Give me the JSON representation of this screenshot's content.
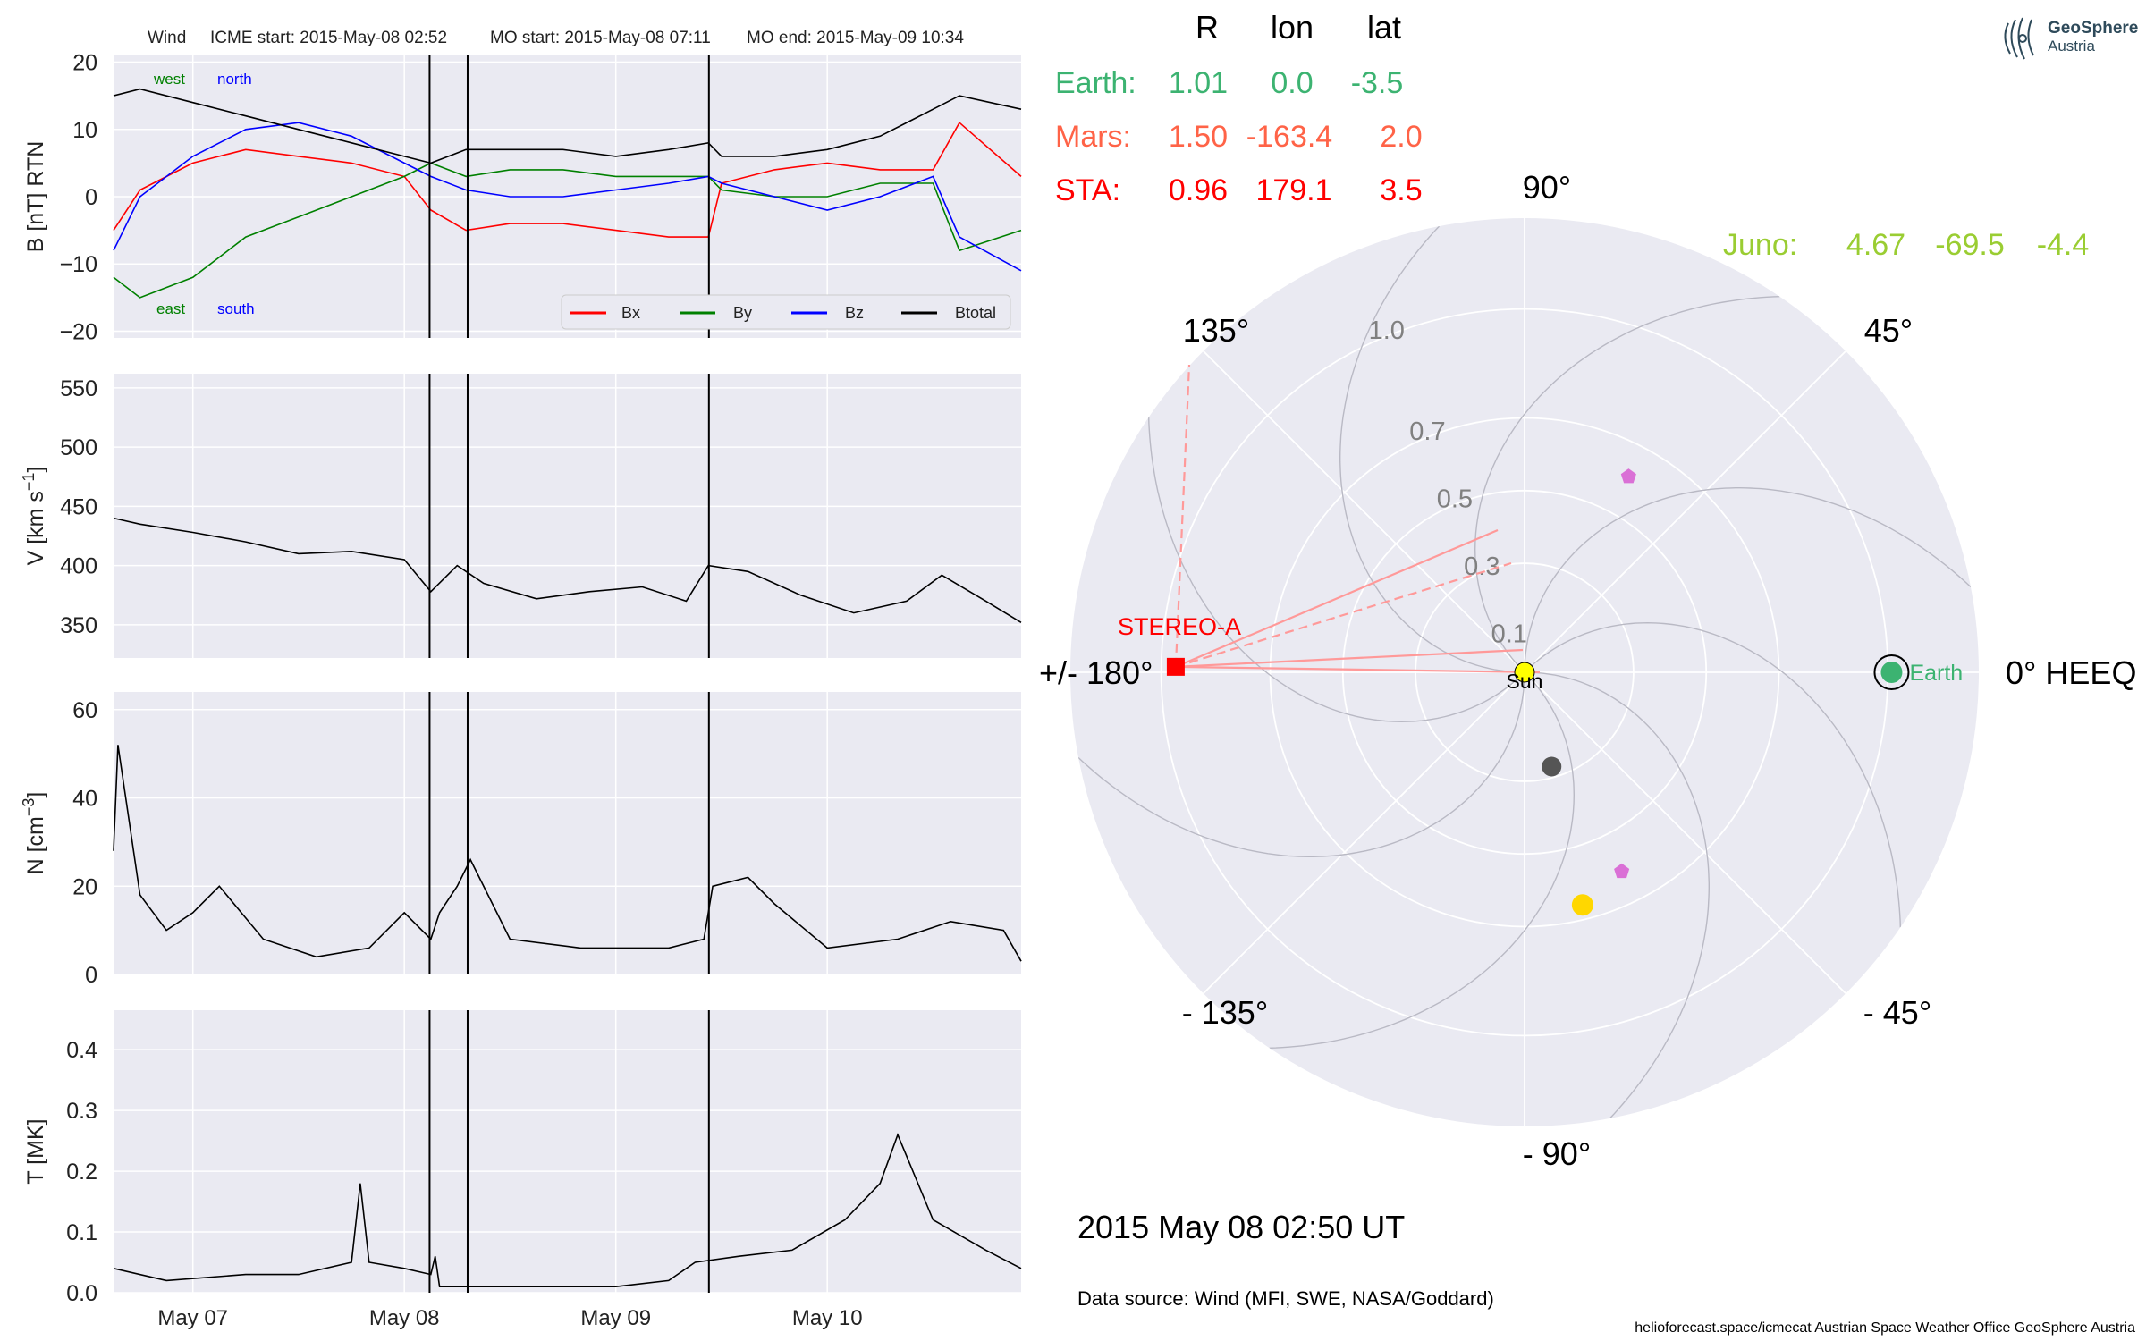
{
  "header": {
    "spacecraft": "Wind",
    "icme_start": "ICME start: 2015-May-08 02:52",
    "mo_start": "MO start: 2015-May-08 07:11",
    "mo_end": "MO end: 2015-May-09 10:34"
  },
  "colors": {
    "panel_bg": "#eaeaf2",
    "grid": "#ffffff",
    "bx": "#ff0000",
    "by": "#008000",
    "bz": "#0000ff",
    "btotal": "#000000",
    "earth": "#3cb371",
    "mars": "#ff6347",
    "sta": "#ff0000",
    "juno": "#9acd32",
    "sun": "#ffff00",
    "polar_bg": "#eaeaf2",
    "planet_violet": "#da70d6",
    "planet_gray": "#555555",
    "planet_yellow": "#ffd700"
  },
  "chart_data": [
    {
      "type": "line",
      "id": "mag",
      "ylabel": "B [nT] RTN",
      "ylim": [
        -21,
        21
      ],
      "yticks": [
        20,
        10,
        0,
        -10,
        -20
      ],
      "ytick_labels": [
        "20",
        "10",
        "0",
        "−10",
        "−20"
      ],
      "x_range": [
        "2015-05-06 15:00",
        "2015-05-10 22:00"
      ],
      "annotations": {
        "west": "west",
        "north": "north",
        "east": "east",
        "south": "south"
      },
      "legend": {
        "position": "lower-right",
        "labels": [
          "Bx",
          "By",
          "Bz",
          "Btotal"
        ]
      },
      "series": [
        {
          "name": "Bx",
          "x": [
            "2015-05-06 15:00",
            "2015-05-06 18:00",
            "2015-05-07 00:00",
            "2015-05-07 06:00",
            "2015-05-07 12:00",
            "2015-05-07 18:00",
            "2015-05-08 00:00",
            "2015-05-08 03:00",
            "2015-05-08 07:00",
            "2015-05-08 12:00",
            "2015-05-08 18:00",
            "2015-05-09 00:00",
            "2015-05-09 06:00",
            "2015-05-09 10:30",
            "2015-05-09 12:00",
            "2015-05-09 18:00",
            "2015-05-10 00:00",
            "2015-05-10 06:00",
            "2015-05-10 12:00",
            "2015-05-10 15:00",
            "2015-05-10 22:00"
          ],
          "y": [
            -5,
            1,
            5,
            7,
            6,
            5,
            3,
            -2,
            -5,
            -4,
            -4,
            -5,
            -6,
            -6,
            2,
            4,
            5,
            4,
            4,
            11,
            3
          ]
        },
        {
          "name": "By",
          "x": [
            "2015-05-06 15:00",
            "2015-05-06 18:00",
            "2015-05-07 00:00",
            "2015-05-07 06:00",
            "2015-05-07 12:00",
            "2015-05-07 18:00",
            "2015-05-08 00:00",
            "2015-05-08 03:00",
            "2015-05-08 07:00",
            "2015-05-08 12:00",
            "2015-05-08 18:00",
            "2015-05-09 00:00",
            "2015-05-09 06:00",
            "2015-05-09 10:30",
            "2015-05-09 12:00",
            "2015-05-09 18:00",
            "2015-05-10 00:00",
            "2015-05-10 06:00",
            "2015-05-10 12:00",
            "2015-05-10 15:00",
            "2015-05-10 22:00"
          ],
          "y": [
            -12,
            -15,
            -12,
            -6,
            -3,
            0,
            3,
            5,
            3,
            4,
            4,
            3,
            3,
            3,
            1,
            0,
            0,
            2,
            2,
            -8,
            -5
          ]
        },
        {
          "name": "Bz",
          "x": [
            "2015-05-06 15:00",
            "2015-05-06 18:00",
            "2015-05-07 00:00",
            "2015-05-07 06:00",
            "2015-05-07 12:00",
            "2015-05-07 18:00",
            "2015-05-08 00:00",
            "2015-05-08 03:00",
            "2015-05-08 07:00",
            "2015-05-08 12:00",
            "2015-05-08 18:00",
            "2015-05-09 00:00",
            "2015-05-09 06:00",
            "2015-05-09 10:30",
            "2015-05-09 12:00",
            "2015-05-09 18:00",
            "2015-05-10 00:00",
            "2015-05-10 06:00",
            "2015-05-10 12:00",
            "2015-05-10 15:00",
            "2015-05-10 22:00"
          ],
          "y": [
            -8,
            0,
            6,
            10,
            11,
            9,
            5,
            3,
            1,
            0,
            0,
            1,
            2,
            3,
            2,
            0,
            -2,
            0,
            3,
            -6,
            -11
          ]
        },
        {
          "name": "Btotal",
          "x": [
            "2015-05-06 15:00",
            "2015-05-06 18:00",
            "2015-05-07 00:00",
            "2015-05-07 06:00",
            "2015-05-07 12:00",
            "2015-05-07 18:00",
            "2015-05-08 00:00",
            "2015-05-08 03:00",
            "2015-05-08 07:00",
            "2015-05-08 12:00",
            "2015-05-08 18:00",
            "2015-05-09 00:00",
            "2015-05-09 06:00",
            "2015-05-09 10:30",
            "2015-05-09 12:00",
            "2015-05-09 18:00",
            "2015-05-10 00:00",
            "2015-05-10 06:00",
            "2015-05-10 12:00",
            "2015-05-10 15:00",
            "2015-05-10 22:00"
          ],
          "y": [
            15,
            16,
            14,
            12,
            10,
            8,
            6,
            5,
            7,
            7,
            7,
            6,
            7,
            8,
            6,
            6,
            7,
            9,
            13,
            15,
            13
          ]
        }
      ]
    },
    {
      "type": "line",
      "id": "speed",
      "ylabel": "V [km s",
      "ylabel_sup": "−1",
      "ylabel_tail": "]",
      "ylim": [
        322,
        562
      ],
      "yticks": [
        550,
        500,
        450,
        400,
        350
      ],
      "ytick_labels": [
        "550",
        "500",
        "450",
        "400",
        "350"
      ],
      "series": [
        {
          "name": "V",
          "x": [
            "2015-05-06 15:00",
            "2015-05-06 18:00",
            "2015-05-07 00:00",
            "2015-05-07 06:00",
            "2015-05-07 12:00",
            "2015-05-07 18:00",
            "2015-05-08 00:00",
            "2015-05-08 03:00",
            "2015-05-08 06:00",
            "2015-05-08 09:00",
            "2015-05-08 15:00",
            "2015-05-08 21:00",
            "2015-05-09 03:00",
            "2015-05-09 08:00",
            "2015-05-09 10:30",
            "2015-05-09 15:00",
            "2015-05-09 21:00",
            "2015-05-10 03:00",
            "2015-05-10 09:00",
            "2015-05-10 13:00",
            "2015-05-10 18:00",
            "2015-05-10 22:00"
          ],
          "y": [
            440,
            435,
            428,
            420,
            410,
            412,
            405,
            378,
            400,
            385,
            372,
            378,
            382,
            370,
            400,
            395,
            375,
            360,
            370,
            392,
            370,
            352
          ]
        }
      ]
    },
    {
      "type": "line",
      "id": "density",
      "ylabel": "N [cm",
      "ylabel_sup": "−3",
      "ylabel_tail": "]",
      "ylim": [
        0,
        64
      ],
      "yticks": [
        60,
        40,
        20,
        0
      ],
      "ytick_labels": [
        "60",
        "40",
        "20",
        "0"
      ],
      "series": [
        {
          "name": "N",
          "x": [
            "2015-05-06 15:00",
            "2015-05-06 15:30",
            "2015-05-06 18:00",
            "2015-05-06 21:00",
            "2015-05-07 00:00",
            "2015-05-07 03:00",
            "2015-05-07 08:00",
            "2015-05-07 14:00",
            "2015-05-07 20:00",
            "2015-05-08 00:00",
            "2015-05-08 03:00",
            "2015-05-08 04:00",
            "2015-05-08 06:00",
            "2015-05-08 07:30",
            "2015-05-08 12:00",
            "2015-05-08 20:00",
            "2015-05-09 06:00",
            "2015-05-09 10:00",
            "2015-05-09 11:00",
            "2015-05-09 15:00",
            "2015-05-09 18:00",
            "2015-05-10 00:00",
            "2015-05-10 08:00",
            "2015-05-10 14:00",
            "2015-05-10 20:00",
            "2015-05-10 22:00"
          ],
          "y": [
            28,
            52,
            18,
            10,
            14,
            20,
            8,
            4,
            6,
            14,
            8,
            14,
            20,
            26,
            8,
            6,
            6,
            8,
            20,
            22,
            16,
            6,
            8,
            12,
            10,
            3
          ]
        }
      ]
    },
    {
      "type": "line",
      "id": "temperature",
      "ylabel": "T [MK]",
      "ylim": [
        0,
        0.465
      ],
      "yticks": [
        0.4,
        0.3,
        0.2,
        0.1,
        0.0
      ],
      "ytick_labels": [
        "0.4",
        "0.3",
        "0.2",
        "0.1",
        "0.0"
      ],
      "xtick_labels": [
        "May 07",
        "May 08",
        "May 09",
        "May 10"
      ],
      "xticks": [
        "2015-05-07 00:00",
        "2015-05-08 00:00",
        "2015-05-09 00:00",
        "2015-05-10 00:00"
      ],
      "series": [
        {
          "name": "T",
          "x": [
            "2015-05-06 15:00",
            "2015-05-06 21:00",
            "2015-05-07 06:00",
            "2015-05-07 12:00",
            "2015-05-07 18:00",
            "2015-05-07 19:00",
            "2015-05-07 20:00",
            "2015-05-08 00:00",
            "2015-05-08 03:00",
            "2015-05-08 03:30",
            "2015-05-08 04:00",
            "2015-05-08 12:00",
            "2015-05-09 00:00",
            "2015-05-09 06:00",
            "2015-05-09 09:00",
            "2015-05-09 14:00",
            "2015-05-09 20:00",
            "2015-05-10 02:00",
            "2015-05-10 06:00",
            "2015-05-10 08:00",
            "2015-05-10 12:00",
            "2015-05-10 18:00",
            "2015-05-10 22:00"
          ],
          "y": [
            0.04,
            0.02,
            0.03,
            0.03,
            0.05,
            0.18,
            0.05,
            0.04,
            0.03,
            0.06,
            0.01,
            0.01,
            0.01,
            0.02,
            0.05,
            0.06,
            0.07,
            0.12,
            0.18,
            0.26,
            0.12,
            0.07,
            0.04
          ]
        }
      ]
    },
    {
      "type": "scatter",
      "id": "polar",
      "projection": "polar",
      "coordinate_label": "0° HEEQ",
      "angle_labels": {
        "a90": "90°",
        "a45": "45°",
        "a135": "135°",
        "a180": "+/- 180°",
        "am135": "- 135°",
        "am90": "- 90°",
        "am45": "- 45°"
      },
      "radial_labels": [
        "0.1",
        "0.3",
        "0.5",
        "0.7",
        "1.0"
      ],
      "rlim": [
        0,
        1.25
      ],
      "points": [
        {
          "label": "Sun",
          "r": 0,
          "lon": 0
        },
        {
          "label": "Earth",
          "r": 1.01,
          "lon": 0.0
        },
        {
          "label": "STEREO-A",
          "r": 0.96,
          "lon": 179.1
        },
        {
          "label": "",
          "r": 0.61,
          "lon": 62
        },
        {
          "label": "",
          "r": 0.27,
          "lon": -74
        },
        {
          "label": "",
          "r": 0.66,
          "lon": -76
        },
        {
          "label": "",
          "r": 0.61,
          "lon": -64
        }
      ]
    }
  ],
  "positions_table": {
    "headers": {
      "r": "R",
      "lon": "lon",
      "lat": "lat"
    },
    "rows": [
      {
        "name": "Earth:",
        "r": "1.01",
        "lon": "0.0",
        "lat": "-3.5"
      },
      {
        "name": "Mars:",
        "r": "1.50",
        "lon": "-163.4",
        "lat": "2.0"
      },
      {
        "name": "STA:",
        "r": "0.96",
        "lon": "179.1",
        "lat": "3.5"
      },
      {
        "name": "Juno:",
        "r": "4.67",
        "lon": "-69.5",
        "lat": "-4.4"
      }
    ]
  },
  "datetime": "2015 May 08  02:50 UT",
  "data_source": "Data source: Wind (MFI, SWE, NASA/Goddard)",
  "footer": "helioforecast.space/icmecat   Austrian Space Weather Office   GeoSphere Austria",
  "logo": {
    "line1": "GeoSphere",
    "line2": "Austria"
  }
}
